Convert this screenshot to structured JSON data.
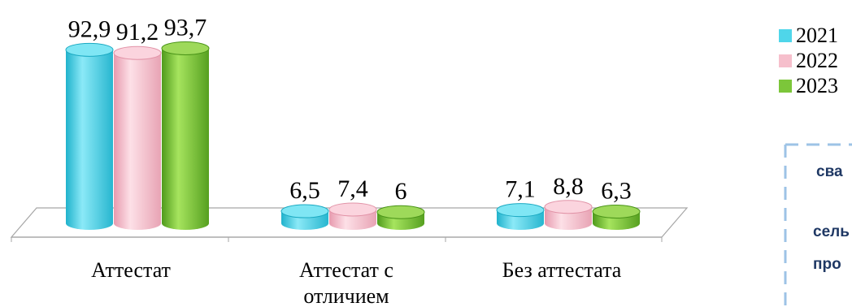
{
  "chart_data": {
    "type": "bar",
    "categories": [
      "Аттестат",
      "Аттестат с отличием",
      "Без аттестата"
    ],
    "category_lines": [
      [
        "Аттестат"
      ],
      [
        "Аттестат с",
        "отличием"
      ],
      [
        "Без аттестата"
      ]
    ],
    "series": [
      {
        "name": "2021",
        "values": [
          92.9,
          6.5,
          7.1
        ],
        "labels": [
          "92,9",
          "6,5",
          "7,1"
        ]
      },
      {
        "name": "2022",
        "values": [
          91.2,
          7.4,
          8.8
        ],
        "labels": [
          "91,2",
          "7,4",
          "8,8"
        ]
      },
      {
        "name": "2023",
        "values": [
          93.7,
          6.0,
          6.3
        ],
        "labels": [
          "93,7",
          "6",
          "6,3"
        ]
      }
    ],
    "ylim": [
      0,
      100
    ],
    "grid": false,
    "legend_position": "top-right",
    "colors": [
      "#4fd6ea",
      "#f6bfcc",
      "#7cc63a"
    ]
  },
  "note": {
    "lines": [
      "сва",
      "сель",
      "про"
    ]
  }
}
